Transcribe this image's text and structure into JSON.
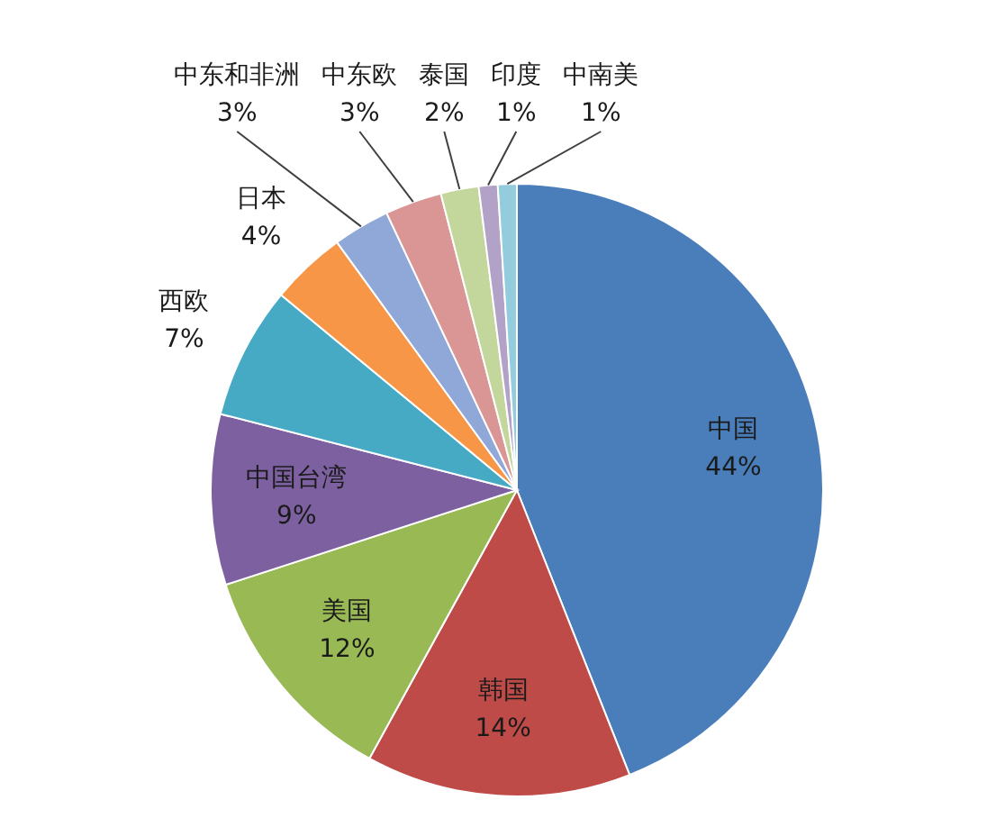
{
  "chart_data": {
    "type": "pie",
    "categories": [
      "中国",
      "韩国",
      "美国",
      "中国台湾",
      "西欧",
      "日本",
      "中东和非洲",
      "中东欧",
      "泰国",
      "印度",
      "中南美"
    ],
    "values": [
      44,
      14,
      12,
      9,
      7,
      4,
      3,
      3,
      2,
      1,
      1
    ],
    "colors": [
      "#4a7ebb",
      "#be4b48",
      "#98b954",
      "#7d60a0",
      "#46aac5",
      "#f79646",
      "#8fa8d8",
      "#d99694",
      "#c3d69b",
      "#b3a2c7",
      "#93cddd"
    ],
    "value_labels": [
      "44%",
      "14%",
      "12%",
      "9%",
      "7%",
      "4%",
      "3%",
      "3%",
      "2%",
      "1%",
      "1%"
    ]
  }
}
